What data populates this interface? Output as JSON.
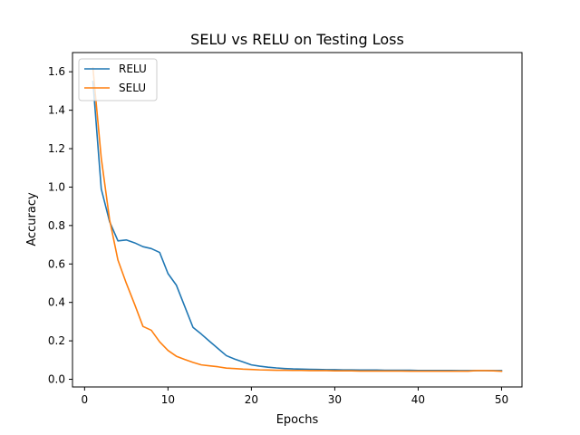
{
  "chart_data": {
    "type": "line",
    "title": "SELU vs RELU on Testing Loss",
    "xlabel": "Epochs",
    "ylabel": "Accuracy",
    "xlim": [
      -1.45,
      52.45
    ],
    "ylim": [
      -0.04,
      1.7
    ],
    "xticks": [
      0,
      10,
      20,
      30,
      40,
      50
    ],
    "yticks": [
      0.0,
      0.2,
      0.4,
      0.6,
      0.8,
      1.0,
      1.2,
      1.4,
      1.6
    ],
    "grid": false,
    "legend": {
      "position": "top-left"
    },
    "x": [
      1,
      2,
      3,
      4,
      5,
      6,
      7,
      8,
      9,
      10,
      11,
      12,
      13,
      14,
      15,
      16,
      17,
      18,
      19,
      20,
      21,
      22,
      23,
      24,
      25,
      26,
      27,
      28,
      29,
      30,
      31,
      32,
      33,
      34,
      35,
      36,
      37,
      38,
      39,
      40,
      41,
      42,
      43,
      44,
      45,
      46,
      47,
      48,
      49,
      50
    ],
    "series": [
      {
        "name": "RELU",
        "color": "#1f77b4",
        "values": [
          1.55,
          0.99,
          0.82,
          0.72,
          0.725,
          0.71,
          0.69,
          0.68,
          0.66,
          0.55,
          0.49,
          0.38,
          0.27,
          0.235,
          0.197,
          0.16,
          0.123,
          0.105,
          0.09,
          0.075,
          0.068,
          0.063,
          0.059,
          0.056,
          0.054,
          0.053,
          0.052,
          0.051,
          0.05,
          0.05,
          0.049,
          0.049,
          0.048,
          0.048,
          0.048,
          0.047,
          0.047,
          0.047,
          0.047,
          0.046,
          0.046,
          0.046,
          0.046,
          0.046,
          0.045,
          0.045,
          0.045,
          0.045,
          0.045,
          0.045
        ]
      },
      {
        "name": "SELU",
        "color": "#ff7f0e",
        "values": [
          1.62,
          1.15,
          0.83,
          0.62,
          0.5,
          0.39,
          0.275,
          0.255,
          0.195,
          0.15,
          0.12,
          0.103,
          0.088,
          0.075,
          0.07,
          0.065,
          0.058,
          0.056,
          0.053,
          0.051,
          0.049,
          0.048,
          0.047,
          0.047,
          0.046,
          0.046,
          0.045,
          0.045,
          0.045,
          0.044,
          0.044,
          0.044,
          0.043,
          0.043,
          0.043,
          0.043,
          0.043,
          0.043,
          0.042,
          0.042,
          0.042,
          0.042,
          0.042,
          0.042,
          0.042,
          0.042,
          0.045,
          0.045,
          0.044,
          0.042
        ]
      }
    ]
  }
}
